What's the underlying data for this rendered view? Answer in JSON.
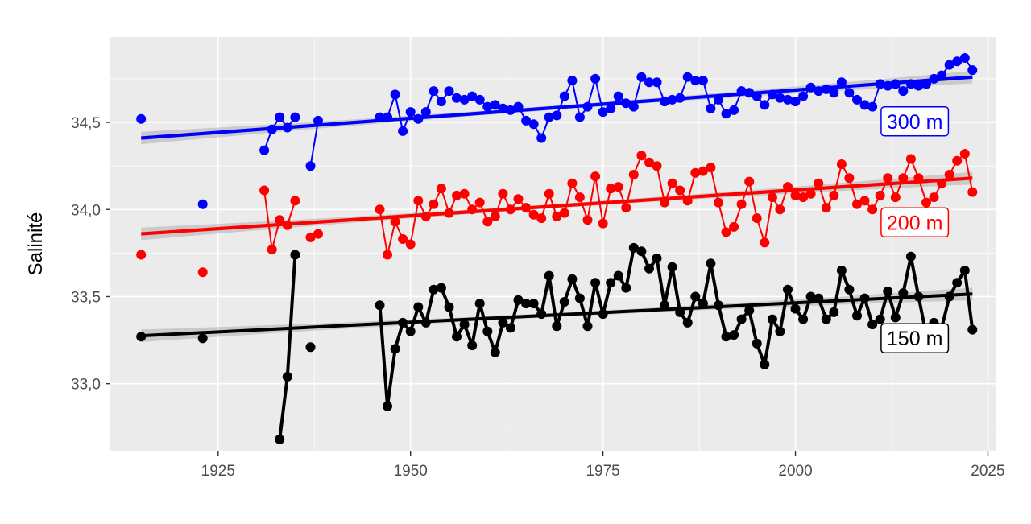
{
  "chart_data": {
    "type": "line",
    "title": "",
    "xlabel": "",
    "ylabel": "Salinité",
    "xlim": [
      1911,
      2026
    ],
    "ylim": [
      32.615,
      34.99
    ],
    "x_ticks": [
      1925,
      1950,
      1975,
      2000,
      2025
    ],
    "x_tick_labels": [
      "1925",
      "1950",
      "1975",
      "2000",
      "2025"
    ],
    "y_ticks": [
      33.0,
      33.5,
      34.0,
      34.5
    ],
    "y_tick_labels": [
      "33,0",
      "33,5",
      "34,0",
      "34,5"
    ],
    "grid": true,
    "legend": "none",
    "series": [
      {
        "name": "300 m",
        "color": "#0000ff",
        "label": "300 m",
        "trend": {
          "x": [
            1915,
            2023
          ],
          "y": [
            34.41,
            34.76
          ]
        },
        "points": [
          [
            1915,
            34.52
          ],
          [
            1923,
            34.03
          ],
          [
            1931,
            34.34
          ],
          [
            1932,
            34.46
          ],
          [
            1933,
            34.53
          ],
          [
            1934,
            34.47
          ],
          [
            1935,
            34.53
          ],
          [
            1937,
            34.25
          ],
          [
            1938,
            34.51
          ],
          [
            1946,
            34.53
          ],
          [
            1947,
            34.53
          ],
          [
            1948,
            34.66
          ],
          [
            1949,
            34.45
          ],
          [
            1950,
            34.56
          ],
          [
            1951,
            34.52
          ],
          [
            1952,
            34.56
          ],
          [
            1953,
            34.68
          ],
          [
            1954,
            34.62
          ],
          [
            1955,
            34.68
          ],
          [
            1956,
            34.64
          ],
          [
            1957,
            34.63
          ],
          [
            1958,
            34.65
          ],
          [
            1959,
            34.63
          ],
          [
            1960,
            34.59
          ],
          [
            1961,
            34.6
          ],
          [
            1962,
            34.58
          ],
          [
            1963,
            34.57
          ],
          [
            1964,
            34.59
          ],
          [
            1965,
            34.51
          ],
          [
            1966,
            34.49
          ],
          [
            1967,
            34.41
          ],
          [
            1968,
            34.53
          ],
          [
            1969,
            34.54
          ],
          [
            1970,
            34.65
          ],
          [
            1971,
            34.74
          ],
          [
            1972,
            34.53
          ],
          [
            1973,
            34.59
          ],
          [
            1974,
            34.75
          ],
          [
            1975,
            34.56
          ],
          [
            1976,
            34.58
          ],
          [
            1977,
            34.65
          ],
          [
            1978,
            34.61
          ],
          [
            1979,
            34.59
          ],
          [
            1980,
            34.76
          ],
          [
            1981,
            34.73
          ],
          [
            1982,
            34.73
          ],
          [
            1983,
            34.62
          ],
          [
            1984,
            34.63
          ],
          [
            1985,
            34.64
          ],
          [
            1986,
            34.76
          ],
          [
            1987,
            34.74
          ],
          [
            1988,
            34.74
          ],
          [
            1989,
            34.58
          ],
          [
            1990,
            34.63
          ],
          [
            1991,
            34.55
          ],
          [
            1992,
            34.57
          ],
          [
            1993,
            34.68
          ],
          [
            1994,
            34.67
          ],
          [
            1995,
            34.65
          ],
          [
            1996,
            34.6
          ],
          [
            1997,
            34.66
          ],
          [
            1998,
            34.64
          ],
          [
            1999,
            34.63
          ],
          [
            2000,
            34.62
          ],
          [
            2001,
            34.65
          ],
          [
            2002,
            34.7
          ],
          [
            2003,
            34.68
          ],
          [
            2004,
            34.69
          ],
          [
            2005,
            34.67
          ],
          [
            2006,
            34.73
          ],
          [
            2007,
            34.67
          ],
          [
            2008,
            34.63
          ],
          [
            2009,
            34.6
          ],
          [
            2010,
            34.59
          ],
          [
            2011,
            34.72
          ],
          [
            2012,
            34.71
          ],
          [
            2013,
            34.72
          ],
          [
            2014,
            34.68
          ],
          [
            2015,
            34.72
          ],
          [
            2016,
            34.71
          ],
          [
            2017,
            34.72
          ],
          [
            2018,
            34.75
          ],
          [
            2019,
            34.77
          ],
          [
            2020,
            34.83
          ],
          [
            2021,
            34.85
          ],
          [
            2022,
            34.87
          ],
          [
            2023,
            34.8
          ]
        ]
      },
      {
        "name": "200 m",
        "color": "#ff0000",
        "label": "200 m",
        "trend": {
          "x": [
            1915,
            2023
          ],
          "y": [
            33.86,
            34.18
          ]
        },
        "points": [
          [
            1915,
            33.74
          ],
          [
            1923,
            33.64
          ],
          [
            1931,
            34.11
          ],
          [
            1932,
            33.77
          ],
          [
            1933,
            33.94
          ],
          [
            1934,
            33.91
          ],
          [
            1935,
            34.05
          ],
          [
            1937,
            33.84
          ],
          [
            1938,
            33.86
          ],
          [
            1946,
            34.0
          ],
          [
            1947,
            33.74
          ],
          [
            1948,
            33.93
          ],
          [
            1949,
            33.83
          ],
          [
            1950,
            33.8
          ],
          [
            1951,
            34.05
          ],
          [
            1952,
            33.96
          ],
          [
            1953,
            34.03
          ],
          [
            1954,
            34.12
          ],
          [
            1955,
            33.98
          ],
          [
            1956,
            34.08
          ],
          [
            1957,
            34.09
          ],
          [
            1958,
            34.0
          ],
          [
            1959,
            34.04
          ],
          [
            1960,
            33.93
          ],
          [
            1961,
            33.96
          ],
          [
            1962,
            34.09
          ],
          [
            1963,
            34.0
          ],
          [
            1964,
            34.06
          ],
          [
            1965,
            34.01
          ],
          [
            1966,
            33.97
          ],
          [
            1967,
            33.95
          ],
          [
            1968,
            34.09
          ],
          [
            1969,
            33.96
          ],
          [
            1970,
            33.98
          ],
          [
            1971,
            34.15
          ],
          [
            1972,
            34.07
          ],
          [
            1973,
            33.94
          ],
          [
            1974,
            34.19
          ],
          [
            1975,
            33.92
          ],
          [
            1976,
            34.12
          ],
          [
            1977,
            34.13
          ],
          [
            1978,
            34.01
          ],
          [
            1979,
            34.2
          ],
          [
            1980,
            34.31
          ],
          [
            1981,
            34.27
          ],
          [
            1982,
            34.25
          ],
          [
            1983,
            34.04
          ],
          [
            1984,
            34.15
          ],
          [
            1985,
            34.11
          ],
          [
            1986,
            34.05
          ],
          [
            1987,
            34.21
          ],
          [
            1988,
            34.22
          ],
          [
            1989,
            34.24
          ],
          [
            1990,
            34.04
          ],
          [
            1991,
            33.87
          ],
          [
            1992,
            33.9
          ],
          [
            1993,
            34.03
          ],
          [
            1994,
            34.16
          ],
          [
            1995,
            33.95
          ],
          [
            1996,
            33.81
          ],
          [
            1997,
            34.07
          ],
          [
            1998,
            34.0
          ],
          [
            1999,
            34.13
          ],
          [
            2000,
            34.08
          ],
          [
            2001,
            34.07
          ],
          [
            2002,
            34.09
          ],
          [
            2003,
            34.15
          ],
          [
            2004,
            34.01
          ],
          [
            2005,
            34.08
          ],
          [
            2006,
            34.26
          ],
          [
            2007,
            34.18
          ],
          [
            2008,
            34.03
          ],
          [
            2009,
            34.05
          ],
          [
            2010,
            34.0
          ],
          [
            2011,
            34.08
          ],
          [
            2012,
            34.18
          ],
          [
            2013,
            34.07
          ],
          [
            2014,
            34.18
          ],
          [
            2015,
            34.29
          ],
          [
            2016,
            34.18
          ],
          [
            2017,
            34.04
          ],
          [
            2018,
            34.07
          ],
          [
            2019,
            34.15
          ],
          [
            2020,
            34.2
          ],
          [
            2021,
            34.28
          ],
          [
            2022,
            34.32
          ],
          [
            2023,
            34.1
          ]
        ]
      },
      {
        "name": "150 m",
        "color": "#000000",
        "label": "150 m",
        "trend": {
          "x": [
            1915,
            2023
          ],
          "y": [
            33.275,
            33.515
          ]
        },
        "points": [
          [
            1915,
            33.27
          ],
          [
            1923,
            33.26
          ],
          [
            1933,
            32.68
          ],
          [
            1934,
            33.04
          ],
          [
            1935,
            33.74
          ],
          [
            1937,
            33.21
          ],
          [
            1946,
            33.45
          ],
          [
            1947,
            32.87
          ],
          [
            1948,
            33.2
          ],
          [
            1949,
            33.35
          ],
          [
            1950,
            33.3
          ],
          [
            1951,
            33.44
          ],
          [
            1952,
            33.35
          ],
          [
            1953,
            33.54
          ],
          [
            1954,
            33.55
          ],
          [
            1955,
            33.44
          ],
          [
            1956,
            33.27
          ],
          [
            1957,
            33.34
          ],
          [
            1958,
            33.22
          ],
          [
            1959,
            33.46
          ],
          [
            1960,
            33.3
          ],
          [
            1961,
            33.18
          ],
          [
            1962,
            33.35
          ],
          [
            1963,
            33.32
          ],
          [
            1964,
            33.48
          ],
          [
            1965,
            33.46
          ],
          [
            1966,
            33.46
          ],
          [
            1967,
            33.4
          ],
          [
            1968,
            33.62
          ],
          [
            1969,
            33.33
          ],
          [
            1970,
            33.47
          ],
          [
            1971,
            33.6
          ],
          [
            1972,
            33.49
          ],
          [
            1973,
            33.33
          ],
          [
            1974,
            33.58
          ],
          [
            1975,
            33.4
          ],
          [
            1976,
            33.58
          ],
          [
            1977,
            33.62
          ],
          [
            1978,
            33.55
          ],
          [
            1979,
            33.78
          ],
          [
            1980,
            33.76
          ],
          [
            1981,
            33.66
          ],
          [
            1982,
            33.72
          ],
          [
            1983,
            33.45
          ],
          [
            1984,
            33.67
          ],
          [
            1985,
            33.41
          ],
          [
            1986,
            33.35
          ],
          [
            1987,
            33.5
          ],
          [
            1988,
            33.46
          ],
          [
            1989,
            33.69
          ],
          [
            1990,
            33.45
          ],
          [
            1991,
            33.27
          ],
          [
            1992,
            33.28
          ],
          [
            1993,
            33.37
          ],
          [
            1994,
            33.42
          ],
          [
            1995,
            33.23
          ],
          [
            1996,
            33.11
          ],
          [
            1997,
            33.37
          ],
          [
            1998,
            33.3
          ],
          [
            1999,
            33.54
          ],
          [
            2000,
            33.43
          ],
          [
            2001,
            33.37
          ],
          [
            2002,
            33.5
          ],
          [
            2003,
            33.49
          ],
          [
            2004,
            33.37
          ],
          [
            2005,
            33.41
          ],
          [
            2006,
            33.65
          ],
          [
            2007,
            33.54
          ],
          [
            2008,
            33.39
          ],
          [
            2009,
            33.49
          ],
          [
            2010,
            33.34
          ],
          [
            2011,
            33.37
          ],
          [
            2012,
            33.53
          ],
          [
            2013,
            33.38
          ],
          [
            2014,
            33.52
          ],
          [
            2015,
            33.73
          ],
          [
            2016,
            33.5
          ],
          [
            2017,
            33.28
          ],
          [
            2018,
            33.35
          ],
          [
            2019,
            33.32
          ],
          [
            2020,
            33.5
          ],
          [
            2021,
            33.58
          ],
          [
            2022,
            33.65
          ],
          [
            2023,
            33.31
          ]
        ]
      }
    ]
  }
}
